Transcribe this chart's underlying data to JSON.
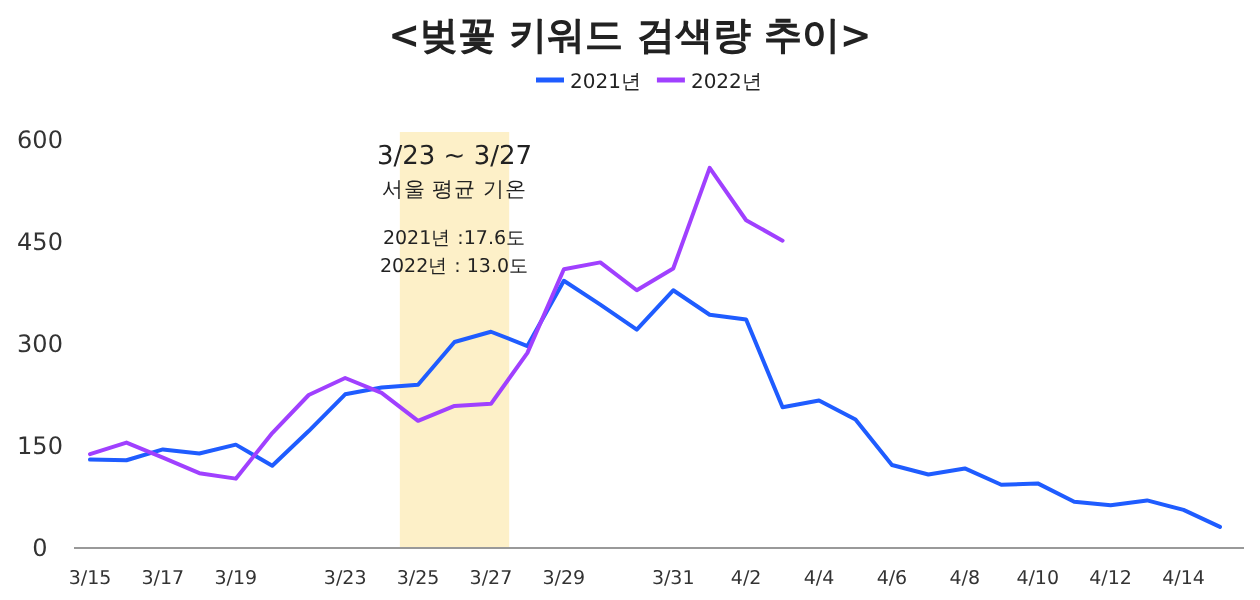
{
  "chart_data": {
    "type": "line",
    "title": "<벚꽃 키워드 검색량 추이>",
    "categories": [
      "3/15",
      null,
      "3/17",
      null,
      "3/19",
      null,
      null,
      "3/23",
      null,
      "3/25",
      null,
      "3/27",
      null,
      "3/29",
      null,
      null,
      "3/31",
      null,
      "4/2",
      null,
      "4/4",
      null,
      "4/6",
      null,
      "4/8",
      null,
      "4/10",
      null,
      "4/12",
      null,
      "4/14",
      null
    ],
    "series": [
      {
        "name": "2021년",
        "color": "#1f5cff",
        "values": [
          130,
          129,
          145,
          139,
          152,
          121,
          172,
          226,
          236,
          240,
          303,
          318,
          297,
          393,
          358,
          321,
          379,
          343,
          336,
          207,
          217,
          189,
          122,
          108,
          117,
          93,
          95,
          68,
          63,
          70,
          56,
          31
        ]
      },
      {
        "name": "2022년",
        "color": "#a040ff",
        "values": [
          138,
          155,
          133,
          110,
          102,
          169,
          225,
          250,
          228,
          187,
          209,
          212,
          287,
          410,
          420,
          379,
          411,
          559,
          482,
          452,
          null,
          null,
          null,
          null,
          null,
          null,
          null,
          null,
          null,
          null,
          null,
          null
        ]
      }
    ],
    "ylim": [
      0,
      600
    ],
    "yticks": [
      0,
      150,
      300,
      450,
      600
    ],
    "bands": [
      {
        "axis": "x",
        "from": "3/25",
        "to": "3/27",
        "label": "3/23 ~ 3/27",
        "color": "#fdf0c8"
      }
    ],
    "annotations": [
      "서울 평균 기온",
      "2021년 :17.6도",
      "2022년 : 13.0도"
    ],
    "legend": "top",
    "grid": false,
    "marker": "none",
    "line_style": "solid"
  }
}
